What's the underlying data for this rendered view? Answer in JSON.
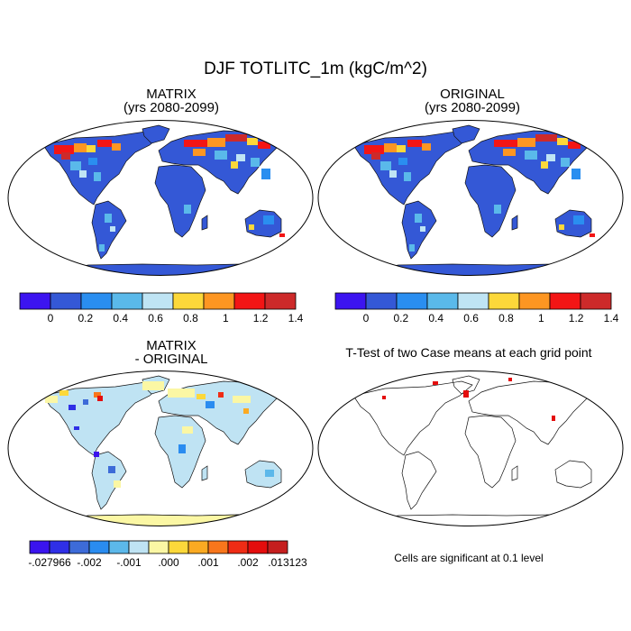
{
  "figure": {
    "title": "DJF TOTLITC_1m (kgC/m^2)",
    "panels": [
      {
        "id": "matrix",
        "title_line1": "MATRIX",
        "title_line2": "(yrs 2080-2099)"
      },
      {
        "id": "original",
        "title_line1": "ORIGINAL",
        "title_line2": "(yrs 2080-2099)"
      },
      {
        "id": "diff",
        "title_line1": "MATRIX",
        "title_line2": "- ORIGINAL"
      },
      {
        "id": "ttest",
        "title_line1": "T-Test of two Case means at each grid point"
      }
    ],
    "note": "Cells are significant at 0.1 level"
  },
  "colorbars": {
    "main": {
      "colors": [
        "#3c14f0",
        "#3458d6",
        "#2a8ef0",
        "#5ab9ea",
        "#bfe4f4",
        "#fcd83a",
        "#fd9622",
        "#f31515",
        "#cd2a2a"
      ],
      "labels": [
        "0",
        "0.2",
        "0.4",
        "0.6",
        "0.8",
        "1",
        "1.2",
        "1.4"
      ]
    },
    "diff": {
      "colors": [
        "#3a14ee",
        "#2f2fe6",
        "#3d6bd8",
        "#2a8cf0",
        "#5cb8ea",
        "#bfe3f3",
        "#fbf7a4",
        "#fcd83a",
        "#fbaa22",
        "#f8761c",
        "#ef2c15",
        "#e40d0d",
        "#c51e1e"
      ],
      "labels": [
        "-.027966",
        "-.002",
        "-.001",
        ".000",
        ".001",
        ".002",
        ".013123"
      ]
    }
  },
  "chart_data": {
    "type": "heatmap",
    "variable": "DJF TOTLITC_1m (kgC/m^2)",
    "period": "yrs 2080-2099",
    "panels": [
      "MATRIX",
      "ORIGINAL",
      "MATRIX - ORIGINAL",
      "T-Test of two Case means at each grid point"
    ],
    "main_levels": [
      0,
      0.2,
      0.4,
      0.6,
      0.8,
      1,
      1.2,
      1.4
    ],
    "diff_levels": [
      -0.027966,
      -0.002,
      -0.001,
      0.0,
      0.001,
      0.002,
      0.013123
    ],
    "significance_level": 0.1
  }
}
